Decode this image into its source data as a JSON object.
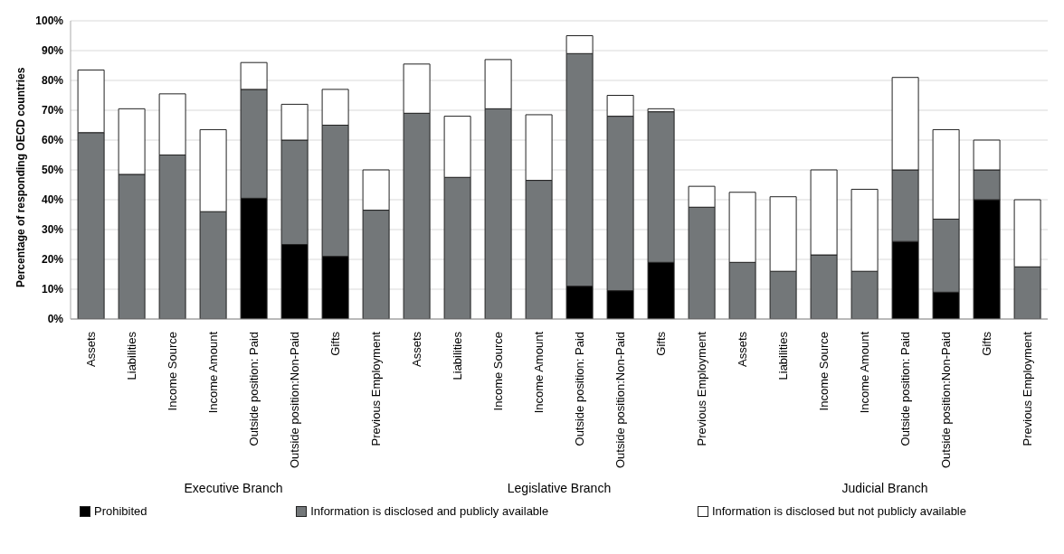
{
  "chart_data": {
    "type": "bar",
    "stacked": true,
    "ylabel": "Percentage of responding OECD countries",
    "categories": [
      "Assets",
      "Liabilities",
      "Income Source",
      "Income Amount",
      "Outside position:  Paid",
      "Outside position:Non-Paid",
      "Gifts",
      "Previous Employment",
      "Assets",
      "Liabilities",
      "Income Source",
      "Income Amount",
      "Outside position:  Paid",
      "Outside position:Non-Paid",
      "Gifts",
      "Previous Employment",
      "Assets",
      "Liabilities",
      "Income Source",
      "Income Amount",
      "Outside position:  Paid",
      "Outside position:Non-Paid",
      "Gifts",
      "Previous Employment"
    ],
    "series": [
      {
        "name": "Prohibited",
        "color": "#000000",
        "values": [
          0,
          0,
          0,
          0,
          40.5,
          25,
          21,
          0,
          0,
          0,
          0,
          0,
          11,
          9.5,
          19,
          0,
          0,
          0,
          0,
          0,
          26,
          9,
          40,
          0
        ]
      },
      {
        "name": "Information is disclosed and publicly available",
        "color": "#737779",
        "values": [
          62.5,
          48.5,
          55,
          36,
          36.5,
          35,
          44,
          36.5,
          69,
          47.5,
          70.5,
          46.5,
          78,
          58.5,
          50.5,
          37.5,
          19,
          16,
          21.5,
          16,
          24,
          24.5,
          10,
          17.5
        ]
      },
      {
        "name": "Information is disclosed but not publicly available",
        "color": "#ffffff",
        "values": [
          21,
          22,
          20.5,
          27.5,
          9,
          12,
          12,
          13.5,
          16.5,
          20.5,
          16.5,
          22,
          6,
          7,
          1,
          7,
          23.5,
          25,
          28.5,
          27.5,
          31,
          30,
          10,
          22.5
        ]
      }
    ],
    "annotations": [
      "Executive Branch",
      "Legislative Branch",
      "Judicial Branch"
    ],
    "ylim": [
      0,
      100
    ],
    "yticks": [
      {
        "value": 0,
        "label": "0%"
      },
      {
        "value": 10,
        "label": "10%"
      },
      {
        "value": 20,
        "label": "20%"
      },
      {
        "value": 30,
        "label": "30%"
      },
      {
        "value": 40,
        "label": "40%"
      },
      {
        "value": 50,
        "label": "50%"
      },
      {
        "value": 60,
        "label": "60%"
      },
      {
        "value": 70,
        "label": "70%"
      },
      {
        "value": 80,
        "label": "80%"
      },
      {
        "value": 90,
        "label": "90%"
      },
      {
        "value": 100,
        "label": "100%"
      }
    ],
    "grid": "y",
    "legend": "bottom"
  }
}
